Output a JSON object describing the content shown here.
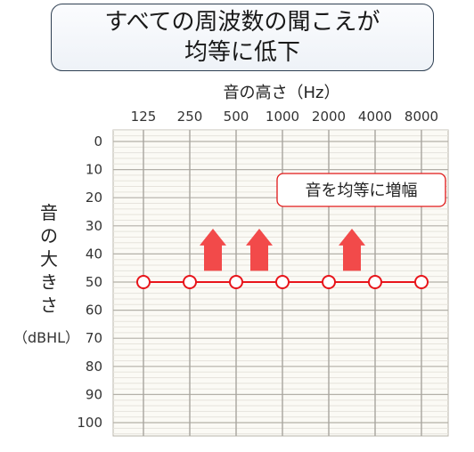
{
  "title": [
    "すべての周波数の聞こえが",
    "均等に低下"
  ],
  "chart_data": {
    "type": "line",
    "xlabel": "音の高さ（Hz）",
    "ylabel": [
      "音",
      "の",
      "大",
      "き",
      "さ"
    ],
    "ylabel_unit": "（dBHL）",
    "x": [
      "125",
      "250",
      "500",
      "1000",
      "2000",
      "4000",
      "8000"
    ],
    "yticks": [
      0,
      10,
      20,
      30,
      40,
      50,
      60,
      70,
      80,
      90,
      100
    ],
    "ylim": [
      0,
      100
    ],
    "y_inverted": true,
    "grid": true,
    "series": [
      {
        "values": [
          50,
          50,
          50,
          50,
          50,
          50,
          50
        ],
        "color": "#e8151b",
        "marker": "open-circle"
      }
    ],
    "arrows": [
      {
        "between": [
          "250",
          "500"
        ],
        "direction": "up",
        "color": "#f24a4a"
      },
      {
        "between": [
          "500",
          "1000"
        ],
        "direction": "up",
        "color": "#f24a4a"
      },
      {
        "between": [
          "2000",
          "4000"
        ],
        "direction": "up",
        "color": "#f24a4a"
      }
    ],
    "annotation": "音を均等に増幅",
    "annotation_border_color": "#e01818"
  }
}
